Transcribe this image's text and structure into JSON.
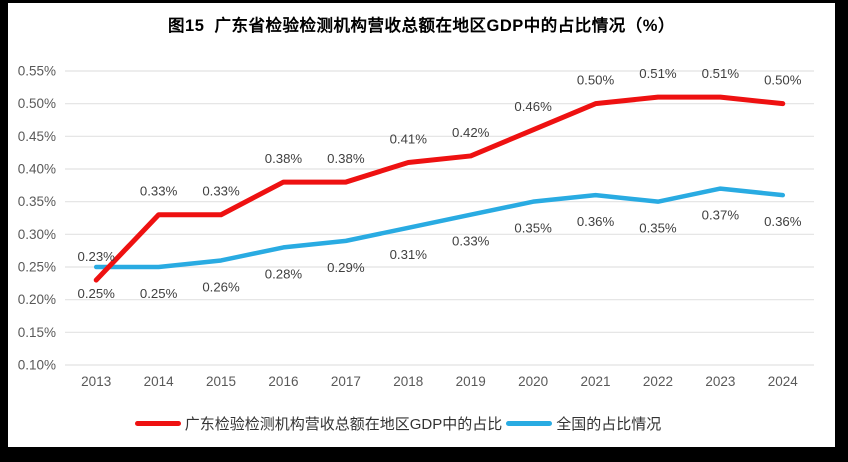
{
  "frame": {
    "background_color": "#000000",
    "panel_color": "#ffffff"
  },
  "title": "图15  广东省检验检测机构营收总额在地区GDP中的占比情况（%）",
  "chart_data": {
    "type": "line",
    "categories": [
      "2013",
      "2014",
      "2015",
      "2016",
      "2017",
      "2018",
      "2019",
      "2020",
      "2021",
      "2022",
      "2023",
      "2024"
    ],
    "series": [
      {
        "key": "guangdong",
        "name": "广东检验检测机构营收总额在地区GDP中的占比",
        "color": "#ee1111",
        "stroke_width": 5,
        "label_position": "above",
        "values": [
          0.23,
          0.33,
          0.33,
          0.38,
          0.38,
          0.41,
          0.42,
          0.46,
          0.5,
          0.51,
          0.51,
          0.5
        ],
        "labels": [
          "0.23%",
          "0.33%",
          "0.33%",
          "0.38%",
          "0.38%",
          "0.41%",
          "0.42%",
          "0.46%",
          "0.50%",
          "0.51%",
          "0.51%",
          "0.50%"
        ]
      },
      {
        "key": "national",
        "name": "全国的占比情况",
        "color": "#29abe2",
        "stroke_width": 4.5,
        "label_position": "below",
        "values": [
          0.25,
          0.25,
          0.26,
          0.28,
          0.29,
          0.31,
          0.33,
          0.35,
          0.36,
          0.35,
          0.37,
          0.36
        ],
        "labels": [
          "0.25%",
          "0.25%",
          "0.26%",
          "0.28%",
          "0.29%",
          "0.31%",
          "0.33%",
          "0.35%",
          "0.36%",
          "0.35%",
          "0.37%",
          "0.36%"
        ]
      }
    ],
    "ylim": [
      0.1,
      0.55
    ],
    "ytick_values": [
      0.1,
      0.15,
      0.2,
      0.25,
      0.3,
      0.35,
      0.4,
      0.45,
      0.5,
      0.55
    ],
    "ytick_labels": [
      "0.10%",
      "0.15%",
      "0.20%",
      "0.25%",
      "0.30%",
      "0.35%",
      "0.40%",
      "0.45%",
      "0.50%",
      "0.55%"
    ],
    "grid": "horizontal",
    "gridline_color": "#e2e2e2",
    "axis_label_color": "#595959",
    "data_label_color": "#404040",
    "legend_position": "bottom"
  }
}
